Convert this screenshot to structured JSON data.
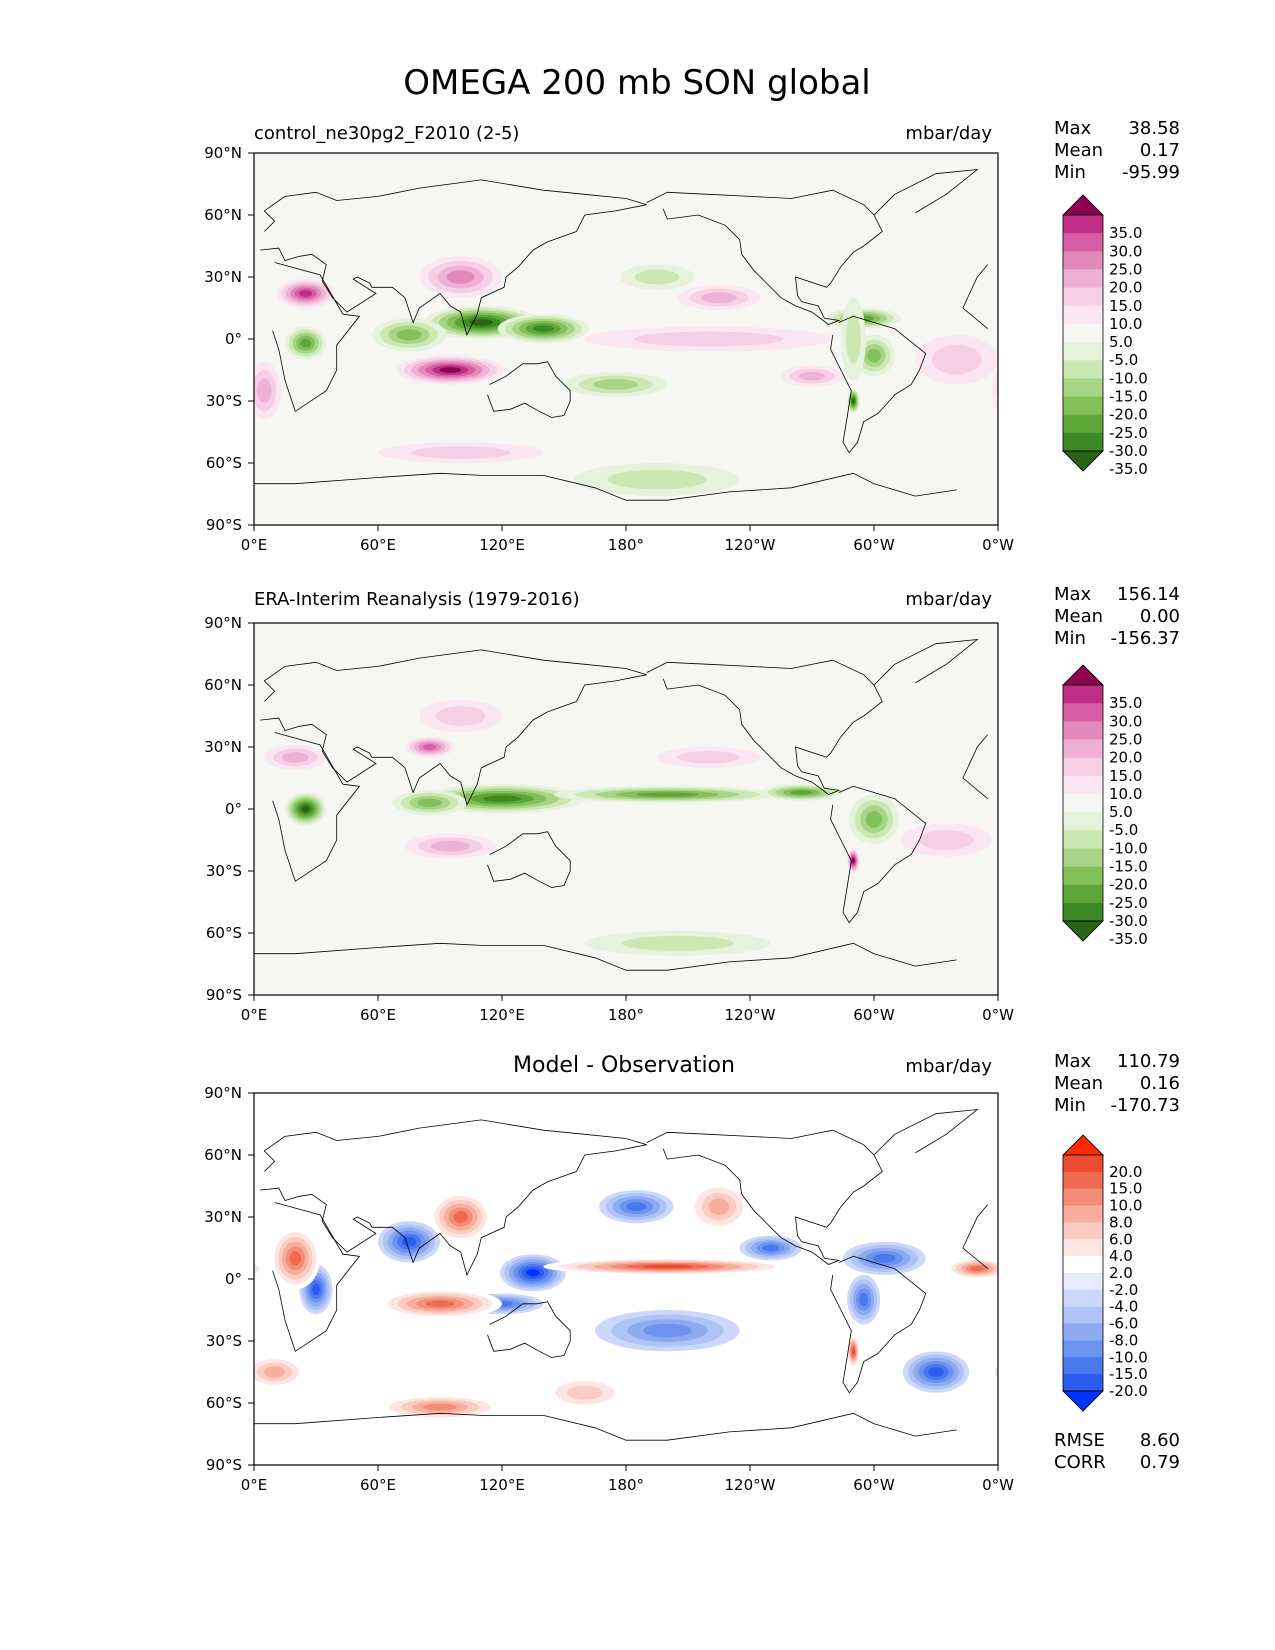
{
  "figure": {
    "title": "OMEGA 200 mb SON global"
  },
  "palettes": {
    "sequential": [
      "#2a6414",
      "#3d8a24",
      "#5ea638",
      "#84c05a",
      "#a8d487",
      "#cbe8b3",
      "#e6f3dc",
      "#f6f6f3",
      "#fbe6f1",
      "#f6cfe4",
      "#eeb1d5",
      "#e38abd",
      "#d75da6",
      "#c02c86",
      "#8e0152"
    ],
    "diff": [
      "#0033ff",
      "#2a5cf0",
      "#4a78ee",
      "#6d93f0",
      "#8eabf2",
      "#aec3f6",
      "#ccd8fa",
      "#e6ecfd",
      "#ffffff",
      "#fde6e1",
      "#fbccc2",
      "#f8ae9c",
      "#f48d76",
      "#f06a52",
      "#eb4b30",
      "#ff2a00"
    ]
  },
  "chart_data": [
    {
      "type": "heatmap",
      "name": "model",
      "left_title": "control_ne30pg2_F2010 (2-5)",
      "center_title": "",
      "units": "mbar/day",
      "stats": [
        {
          "label": "Max",
          "value": "38.58"
        },
        {
          "label": "Mean",
          "value": "0.17"
        },
        {
          "label": "Min",
          "value": "-95.99"
        }
      ],
      "colorbar": {
        "palette": "sequential",
        "ticks": [
          "35.0",
          "30.0",
          "25.0",
          "20.0",
          "15.0",
          "10.0",
          "5.0",
          "-5.0",
          "-10.0",
          "-15.0",
          "-20.0",
          "-25.0",
          "-30.0",
          "-35.0"
        ]
      },
      "lon_ticks": [
        "0°E",
        "60°E",
        "120°E",
        "180°",
        "120°W",
        "60°W",
        "0°W"
      ],
      "lat_ticks": [
        "90°N",
        "60°N",
        "30°N",
        "0°",
        "30°S",
        "60°S",
        "90°S"
      ],
      "xlim": [
        0,
        360
      ],
      "ylim": [
        -90,
        90
      ],
      "features": [
        {
          "lon": 110,
          "lat": 8,
          "w": 28,
          "h": 8,
          "v": -35
        },
        {
          "lon": 140,
          "lat": 5,
          "w": 22,
          "h": 7,
          "v": -30
        },
        {
          "lon": 75,
          "lat": 2,
          "w": 18,
          "h": 8,
          "v": -22
        },
        {
          "lon": 25,
          "lat": -2,
          "w": 10,
          "h": 8,
          "v": -25
        },
        {
          "lon": 295,
          "lat": 10,
          "w": 18,
          "h": 5,
          "v": -28
        },
        {
          "lon": 300,
          "lat": -8,
          "w": 10,
          "h": 10,
          "v": -22
        },
        {
          "lon": 290,
          "lat": -30,
          "w": 3,
          "h": 6,
          "v": -35
        },
        {
          "lon": 175,
          "lat": -22,
          "w": 25,
          "h": 6,
          "v": -15
        },
        {
          "lon": 195,
          "lat": 30,
          "w": 18,
          "h": 6,
          "v": -10
        },
        {
          "lon": 195,
          "lat": -68,
          "w": 40,
          "h": 8,
          "v": -10
        },
        {
          "lon": 95,
          "lat": -15,
          "w": 26,
          "h": 7,
          "v": 35
        },
        {
          "lon": 25,
          "lat": 22,
          "w": 14,
          "h": 7,
          "v": 30
        },
        {
          "lon": 100,
          "lat": 30,
          "w": 20,
          "h": 10,
          "v": 20
        },
        {
          "lon": 220,
          "lat": 0,
          "w": 60,
          "h": 6,
          "v": 12
        },
        {
          "lon": 225,
          "lat": 20,
          "w": 20,
          "h": 6,
          "v": 15
        },
        {
          "lon": 270,
          "lat": -18,
          "w": 15,
          "h": 5,
          "v": 15
        },
        {
          "lon": 340,
          "lat": -10,
          "w": 20,
          "h": 12,
          "v": 12
        },
        {
          "lon": 5,
          "lat": -25,
          "w": 8,
          "h": 14,
          "v": 15
        },
        {
          "lon": 100,
          "lat": -55,
          "w": 40,
          "h": 5,
          "v": 10
        },
        {
          "lon": 290,
          "lat": 0,
          "w": 6,
          "h": 20,
          "v": -12
        }
      ]
    },
    {
      "type": "heatmap",
      "name": "obs",
      "left_title": "ERA-Interim Reanalysis (1979-2016)",
      "center_title": "",
      "units": "mbar/day",
      "stats": [
        {
          "label": "Max",
          "value": "156.14"
        },
        {
          "label": "Mean",
          "value": "0.00"
        },
        {
          "label": "Min",
          "value": "-156.37"
        }
      ],
      "colorbar": {
        "palette": "sequential",
        "ticks": [
          "35.0",
          "30.0",
          "25.0",
          "20.0",
          "15.0",
          "10.0",
          "5.0",
          "-5.0",
          "-10.0",
          "-15.0",
          "-20.0",
          "-25.0",
          "-30.0",
          "-35.0"
        ]
      },
      "lon_ticks": [
        "0°E",
        "60°E",
        "120°E",
        "180°",
        "120°W",
        "60°W",
        "0°W"
      ],
      "lat_ticks": [
        "90°N",
        "60°N",
        "30°N",
        "0°",
        "30°S",
        "60°S",
        "90°S"
      ],
      "xlim": [
        0,
        360
      ],
      "ylim": [
        -90,
        90
      ],
      "features": [
        {
          "lon": 120,
          "lat": 5,
          "w": 40,
          "h": 7,
          "v": -30
        },
        {
          "lon": 200,
          "lat": 7,
          "w": 55,
          "h": 4,
          "v": -28
        },
        {
          "lon": 265,
          "lat": 8,
          "w": 20,
          "h": 4,
          "v": -25
        },
        {
          "lon": 25,
          "lat": 0,
          "w": 10,
          "h": 8,
          "v": -35
        },
        {
          "lon": 300,
          "lat": -5,
          "w": 12,
          "h": 12,
          "v": -22
        },
        {
          "lon": 85,
          "lat": 3,
          "w": 18,
          "h": 6,
          "v": -20
        },
        {
          "lon": 205,
          "lat": -65,
          "w": 45,
          "h": 6,
          "v": -10
        },
        {
          "lon": 290,
          "lat": -25,
          "w": 3,
          "h": 6,
          "v": 35
        },
        {
          "lon": 85,
          "lat": 30,
          "w": 12,
          "h": 5,
          "v": 25
        },
        {
          "lon": 95,
          "lat": -18,
          "w": 22,
          "h": 6,
          "v": 15
        },
        {
          "lon": 20,
          "lat": 25,
          "w": 15,
          "h": 6,
          "v": 15
        },
        {
          "lon": 220,
          "lat": 25,
          "w": 25,
          "h": 5,
          "v": 12
        },
        {
          "lon": 335,
          "lat": -15,
          "w": 22,
          "h": 8,
          "v": 12
        },
        {
          "lon": 100,
          "lat": 45,
          "w": 20,
          "h": 8,
          "v": 10
        }
      ]
    },
    {
      "type": "heatmap",
      "name": "diff",
      "left_title": "",
      "center_title": "Model - Observation",
      "units": "mbar/day",
      "stats": [
        {
          "label": "Max",
          "value": "110.79"
        },
        {
          "label": "Mean",
          "value": "0.16"
        },
        {
          "label": "Min",
          "value": "-170.73"
        }
      ],
      "colorbar": {
        "palette": "diff",
        "ticks": [
          "20.0",
          "15.0",
          "10.0",
          "8.0",
          "6.0",
          "4.0",
          "2.0",
          "-2.0",
          "-4.0",
          "-6.0",
          "-8.0",
          "-10.0",
          "-15.0",
          "-20.0"
        ]
      },
      "metrics": [
        {
          "label": "RMSE",
          "value": "8.60"
        },
        {
          "label": "CORR",
          "value": "0.79"
        }
      ],
      "lon_ticks": [
        "0°E",
        "60°E",
        "120°E",
        "180°",
        "120°W",
        "60°W",
        "0°W"
      ],
      "lat_ticks": [
        "90°N",
        "60°N",
        "30°N",
        "0°",
        "30°S",
        "60°S",
        "90°S"
      ],
      "xlim": [
        0,
        360
      ],
      "ylim": [
        -90,
        90
      ],
      "features": [
        {
          "lon": 135,
          "lat": 3,
          "w": 16,
          "h": 9,
          "v": -20
        },
        {
          "lon": 75,
          "lat": 18,
          "w": 15,
          "h": 10,
          "v": -15
        },
        {
          "lon": 185,
          "lat": 35,
          "w": 18,
          "h": 8,
          "v": -12
        },
        {
          "lon": 305,
          "lat": 10,
          "w": 20,
          "h": 8,
          "v": -12
        },
        {
          "lon": 330,
          "lat": -45,
          "w": 16,
          "h": 10,
          "v": -15
        },
        {
          "lon": 200,
          "lat": -25,
          "w": 35,
          "h": 10,
          "v": -8
        },
        {
          "lon": 295,
          "lat": -10,
          "w": 8,
          "h": 12,
          "v": -12
        },
        {
          "lon": 30,
          "lat": -5,
          "w": 8,
          "h": 12,
          "v": -15
        },
        {
          "lon": 120,
          "lat": -12,
          "w": 20,
          "h": 5,
          "v": -10
        },
        {
          "lon": 250,
          "lat": 15,
          "w": 15,
          "h": 6,
          "v": -10
        },
        {
          "lon": 200,
          "lat": 6,
          "w": 60,
          "h": 4,
          "v": 20
        },
        {
          "lon": 90,
          "lat": -12,
          "w": 30,
          "h": 7,
          "v": 15
        },
        {
          "lon": 20,
          "lat": 10,
          "w": 12,
          "h": 15,
          "v": 18
        },
        {
          "lon": 100,
          "lat": 30,
          "w": 15,
          "h": 12,
          "v": 15
        },
        {
          "lon": 290,
          "lat": -35,
          "w": 3,
          "h": 8,
          "v": 20
        },
        {
          "lon": 350,
          "lat": 5,
          "w": 15,
          "h": 5,
          "v": 15
        },
        {
          "lon": 225,
          "lat": 35,
          "w": 15,
          "h": 12,
          "v": 8
        },
        {
          "lon": 90,
          "lat": -62,
          "w": 30,
          "h": 6,
          "v": 10
        },
        {
          "lon": 10,
          "lat": -45,
          "w": 15,
          "h": 8,
          "v": 8
        },
        {
          "lon": 160,
          "lat": -55,
          "w": 20,
          "h": 8,
          "v": 6
        }
      ]
    }
  ]
}
